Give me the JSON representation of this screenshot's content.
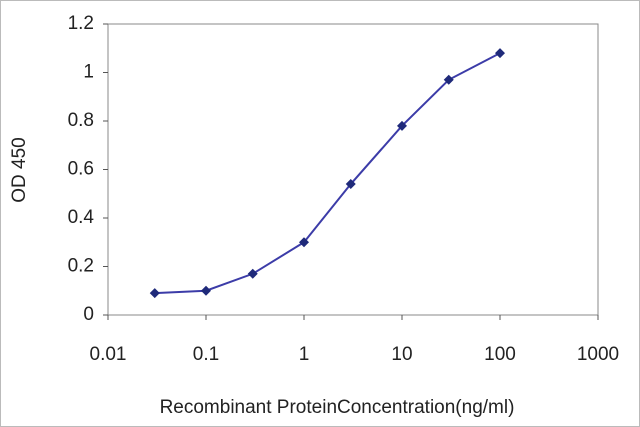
{
  "chart_data": {
    "type": "line",
    "x_label": "Recombinant ProteinConcentration(ng/ml)",
    "y_label": "OD 450",
    "x": [
      0.03,
      0.1,
      0.3,
      1,
      3,
      10,
      30,
      100
    ],
    "values": [
      0.09,
      0.1,
      0.17,
      0.3,
      0.54,
      0.78,
      0.97,
      1.08
    ],
    "color": "#3c3ca8",
    "marker_color": "#1f2a7a",
    "x_log": true,
    "xlim": [
      0.01,
      1000
    ],
    "xticks": [
      0.01,
      0.1,
      1,
      10,
      100,
      1000
    ],
    "ylim": [
      0,
      1.2
    ],
    "yticks": [
      0,
      0.2,
      0.4,
      0.6,
      0.8,
      1,
      1.2
    ],
    "grid": false
  }
}
